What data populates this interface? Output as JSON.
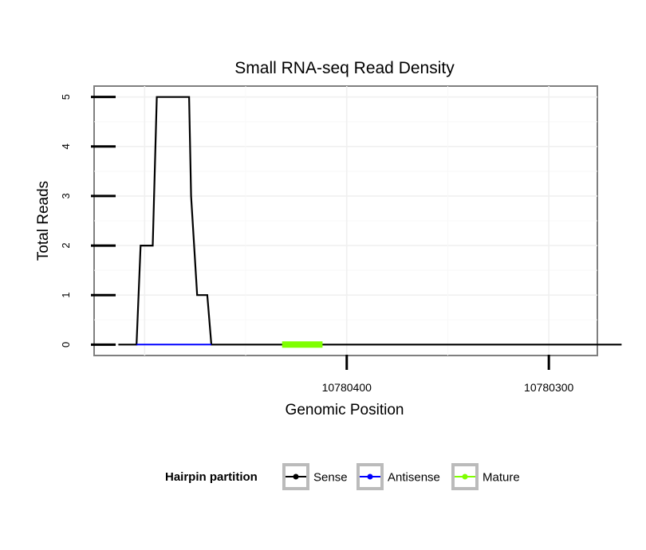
{
  "chart_data": {
    "type": "line",
    "title": "Small RNA-seq Read Density",
    "xlabel": "Genomic Position",
    "ylabel": "Total Reads",
    "x_reversed": true,
    "xlim": [
      10780276,
      10780525
    ],
    "ylim": [
      -0.22,
      5.22
    ],
    "x_ticks": [
      10780400,
      10780300
    ],
    "x_tick_labels": [
      "10780400",
      "10780300"
    ],
    "y_ticks": [
      0,
      1,
      2,
      3,
      4,
      5
    ],
    "y_tick_labels": [
      "0",
      "1",
      "2",
      "3",
      "4",
      "5"
    ],
    "grid": true,
    "series": [
      {
        "name": "Sense",
        "color": "#000000",
        "x": [
          10780513,
          10780504,
          10780502,
          10780496,
          10780494,
          10780478,
          10780477,
          10780474,
          10780473,
          10780469,
          10780467,
          10780264
        ],
        "y": [
          0,
          0,
          2,
          2,
          5,
          5,
          3,
          1,
          1,
          1,
          0,
          0
        ]
      },
      {
        "name": "Antisense",
        "color": "#0000ff",
        "x": [
          10780504,
          10780467
        ],
        "y": [
          0,
          0
        ]
      },
      {
        "name": "Mature",
        "color": "#7fff00",
        "x": [
          10780432,
          10780412
        ],
        "y": [
          0,
          0
        ]
      }
    ],
    "legend": {
      "title": "Hairpin partition",
      "position": "bottom",
      "items": [
        "Sense",
        "Antisense",
        "Mature"
      ]
    }
  }
}
